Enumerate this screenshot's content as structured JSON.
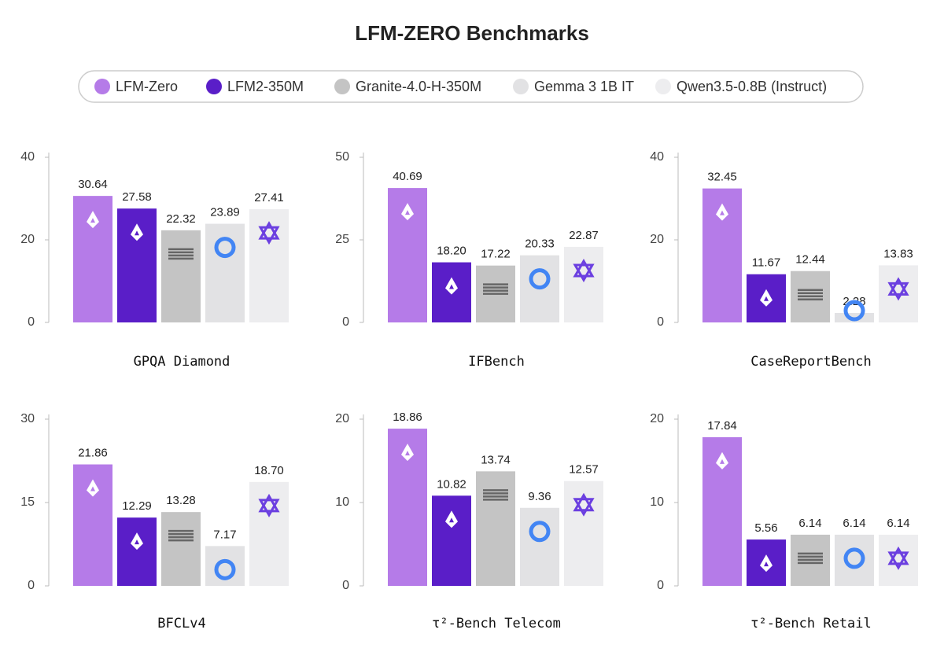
{
  "title": "LFM-ZERO Benchmarks",
  "legend": [
    {
      "name": "LFM-Zero",
      "color": "#b57be8"
    },
    {
      "name": "LFM2-350M",
      "color": "#5a1ec8"
    },
    {
      "name": "Granite-4.0-H-350M",
      "color": "#c4c4c4"
    },
    {
      "name": "Gemma 3 1B IT",
      "color": "#e2e2e4"
    },
    {
      "name": "Qwen3.5-0.8B (Instruct)",
      "color": "#ededef"
    }
  ],
  "chart_data": [
    {
      "type": "bar",
      "title": "GPQA Diamond",
      "values": [
        30.64,
        27.58,
        22.32,
        23.89,
        27.41
      ],
      "ylim": [
        0,
        40
      ],
      "yticks": [
        0,
        20,
        40
      ]
    },
    {
      "type": "bar",
      "title": "IFBench",
      "values": [
        40.69,
        18.2,
        17.22,
        20.33,
        22.87
      ],
      "value_labels": [
        "40.69",
        "18.20",
        "17.22",
        "20.33",
        "22.87"
      ],
      "ylim": [
        0,
        50
      ],
      "yticks": [
        0,
        25,
        50
      ]
    },
    {
      "type": "bar",
      "title": "CaseReportBench",
      "values": [
        32.45,
        11.67,
        12.44,
        2.28,
        13.83
      ],
      "ylim": [
        0,
        40
      ],
      "yticks": [
        0,
        20,
        40
      ]
    },
    {
      "type": "bar",
      "title": "BFCLv4",
      "values": [
        21.86,
        12.29,
        13.28,
        7.17,
        18.7
      ],
      "value_labels": [
        "21.86",
        "12.29",
        "13.28",
        "7.17",
        "18.70"
      ],
      "ylim": [
        0,
        30
      ],
      "yticks": [
        0,
        15,
        30
      ]
    },
    {
      "type": "bar",
      "title": "τ²-Bench Telecom",
      "values": [
        18.86,
        10.82,
        13.74,
        9.36,
        12.57
      ],
      "ylim": [
        0,
        20
      ],
      "yticks": [
        0,
        10,
        20
      ]
    },
    {
      "type": "bar",
      "title": "τ²-Bench Retail",
      "values": [
        17.84,
        5.56,
        6.14,
        6.14,
        6.14
      ],
      "ylim": [
        0,
        20
      ],
      "yticks": [
        0,
        10,
        20
      ]
    }
  ]
}
